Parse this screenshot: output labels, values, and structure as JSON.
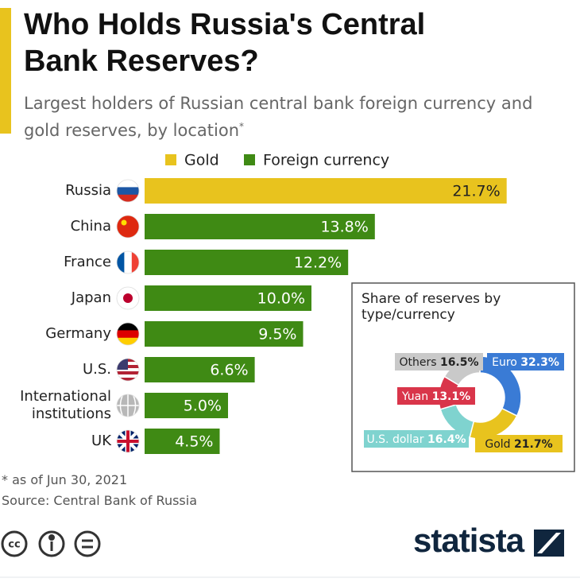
{
  "chart_data": [
    {
      "type": "bar",
      "title": "Who Holds Russia's Central Bank Reserves?",
      "subtitle": "Largest holders of Russian central bank foreign currency and gold reserves, by location",
      "subtitle_mark": "*",
      "notes": [
        "* as of Jun 30, 2021",
        "Source: Central Bank of Russia"
      ],
      "categories": [
        "Russia",
        "China",
        "France",
        "Japan",
        "Germany",
        "U.S.",
        "International institutions",
        "UK"
      ],
      "series": [
        {
          "name": "Gold",
          "color": "#e8c31e",
          "values": [
            21.7,
            null,
            null,
            null,
            null,
            null,
            null,
            null
          ],
          "value_labels": [
            "21.7%",
            null,
            null,
            null,
            null,
            null,
            null,
            null
          ]
        },
        {
          "name": "Foreign currency",
          "color": "#3f8a14",
          "values": [
            null,
            13.8,
            12.2,
            10.0,
            9.5,
            6.6,
            5.0,
            4.5
          ],
          "value_labels": [
            null,
            "13.8%",
            "12.2%",
            "10.0%",
            "9.5%",
            "6.6%",
            "5.0%",
            "4.5%"
          ]
        }
      ]
    },
    {
      "type": "pie",
      "title": "Share of reserves by type/currency",
      "categories": [
        "Euro",
        "Gold",
        "U.S. dollar",
        "Yuan",
        "Others"
      ],
      "values": [
        32.3,
        21.7,
        16.4,
        13.1,
        16.5
      ],
      "value_labels": [
        "32.3%",
        "21.7%",
        "16.4%",
        "13.1%",
        "16.5%"
      ],
      "colors": [
        "#3a7bd5",
        "#e8c31e",
        "#7fd3cf",
        "#d9354a",
        "#c9c9c9"
      ]
    }
  ],
  "brand": "statista"
}
